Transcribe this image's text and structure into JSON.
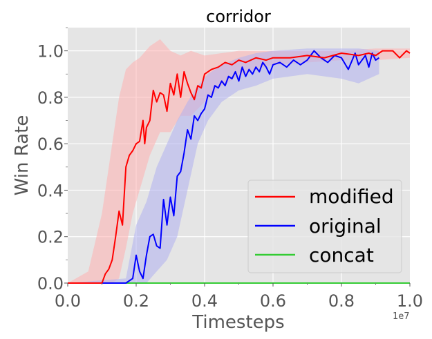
{
  "chart_data": {
    "type": "line",
    "title": "corridor",
    "xlabel": "Timesteps",
    "ylabel": "Win Rate",
    "x_offset_label": "1e7",
    "xlim": [
      0.0,
      1.0
    ],
    "ylim": [
      0.0,
      1.1
    ],
    "xticks": [
      "0.0",
      "0.2",
      "0.4",
      "0.6",
      "0.8",
      "1.0"
    ],
    "yticks": [
      "0.0",
      "0.2",
      "0.4",
      "0.6",
      "0.8",
      "1.0"
    ],
    "grid": true,
    "legend_position": "lower-right",
    "series": [
      {
        "name": "modified",
        "color": "#ff0000",
        "band_color": "#ffb0b0",
        "x": [
          0.0,
          0.1,
          0.11,
          0.12,
          0.13,
          0.14,
          0.15,
          0.16,
          0.17,
          0.18,
          0.19,
          0.2,
          0.21,
          0.22,
          0.225,
          0.23,
          0.24,
          0.25,
          0.26,
          0.27,
          0.28,
          0.29,
          0.3,
          0.31,
          0.32,
          0.33,
          0.34,
          0.35,
          0.36,
          0.37,
          0.38,
          0.39,
          0.4,
          0.42,
          0.44,
          0.46,
          0.48,
          0.5,
          0.52,
          0.55,
          0.58,
          0.6,
          0.65,
          0.7,
          0.75,
          0.8,
          0.85,
          0.88,
          0.9,
          0.92,
          0.95,
          0.97,
          0.99,
          1.0
        ],
        "y": [
          0.0,
          0.0,
          0.04,
          0.06,
          0.1,
          0.2,
          0.31,
          0.25,
          0.5,
          0.55,
          0.57,
          0.6,
          0.61,
          0.7,
          0.6,
          0.67,
          0.7,
          0.83,
          0.78,
          0.82,
          0.81,
          0.74,
          0.86,
          0.81,
          0.9,
          0.8,
          0.91,
          0.86,
          0.82,
          0.79,
          0.85,
          0.84,
          0.9,
          0.92,
          0.93,
          0.95,
          0.94,
          0.96,
          0.95,
          0.97,
          0.96,
          0.97,
          0.97,
          0.98,
          0.97,
          0.99,
          0.98,
          0.99,
          0.98,
          1.0,
          1.0,
          0.97,
          1.0,
          0.99
        ],
        "band": [
          [
            0.0,
            0.0,
            0.0
          ],
          [
            0.06,
            0.0,
            0.05
          ],
          [
            0.1,
            0.0,
            0.3
          ],
          [
            0.13,
            0.0,
            0.6
          ],
          [
            0.15,
            0.02,
            0.8
          ],
          [
            0.17,
            0.15,
            0.92
          ],
          [
            0.19,
            0.3,
            0.95
          ],
          [
            0.21,
            0.4,
            0.97
          ],
          [
            0.24,
            0.55,
            1.02
          ],
          [
            0.27,
            0.65,
            1.05
          ],
          [
            0.3,
            0.65,
            1.0
          ],
          [
            0.33,
            0.72,
            0.98
          ],
          [
            0.36,
            0.72,
            1.0
          ],
          [
            0.4,
            0.78,
            0.98
          ],
          [
            0.45,
            0.85,
            0.99
          ],
          [
            0.5,
            0.89,
            1.0
          ],
          [
            0.55,
            0.92,
            1.0
          ],
          [
            0.6,
            0.94,
            1.0
          ],
          [
            0.7,
            0.95,
            1.0
          ],
          [
            0.8,
            0.96,
            1.0
          ],
          [
            0.9,
            0.96,
            1.01
          ],
          [
            1.0,
            0.97,
            1.01
          ]
        ]
      },
      {
        "name": "original",
        "color": "#0000ff",
        "band_color": "#b0b0f0",
        "x": [
          0.0,
          0.17,
          0.18,
          0.19,
          0.2,
          0.21,
          0.22,
          0.23,
          0.24,
          0.25,
          0.26,
          0.27,
          0.28,
          0.29,
          0.3,
          0.31,
          0.32,
          0.33,
          0.34,
          0.35,
          0.36,
          0.37,
          0.38,
          0.39,
          0.4,
          0.41,
          0.42,
          0.43,
          0.44,
          0.45,
          0.46,
          0.47,
          0.48,
          0.49,
          0.5,
          0.51,
          0.52,
          0.53,
          0.54,
          0.55,
          0.56,
          0.57,
          0.58,
          0.59,
          0.6,
          0.62,
          0.64,
          0.66,
          0.68,
          0.7,
          0.72,
          0.74,
          0.76,
          0.78,
          0.8,
          0.82,
          0.84,
          0.85,
          0.86,
          0.87,
          0.88,
          0.89,
          0.9,
          0.91
        ],
        "y": [
          0.0,
          0.0,
          0.01,
          0.02,
          0.12,
          0.05,
          0.02,
          0.12,
          0.2,
          0.21,
          0.16,
          0.15,
          0.36,
          0.25,
          0.37,
          0.29,
          0.46,
          0.48,
          0.56,
          0.66,
          0.62,
          0.72,
          0.7,
          0.73,
          0.75,
          0.81,
          0.8,
          0.85,
          0.84,
          0.87,
          0.85,
          0.89,
          0.88,
          0.91,
          0.87,
          0.93,
          0.89,
          0.92,
          0.9,
          0.93,
          0.91,
          0.95,
          0.93,
          0.9,
          0.94,
          0.95,
          0.93,
          0.96,
          0.94,
          0.96,
          1.0,
          0.97,
          0.95,
          0.98,
          0.97,
          0.92,
          0.99,
          0.94,
          0.96,
          0.98,
          0.93,
          0.99,
          0.96,
          0.97
        ],
        "band": [
          [
            0.0,
            0.0,
            0.0
          ],
          [
            0.17,
            0.0,
            0.02
          ],
          [
            0.2,
            0.0,
            0.25
          ],
          [
            0.23,
            0.0,
            0.35
          ],
          [
            0.26,
            0.05,
            0.5
          ],
          [
            0.29,
            0.1,
            0.6
          ],
          [
            0.32,
            0.2,
            0.7
          ],
          [
            0.35,
            0.4,
            0.78
          ],
          [
            0.38,
            0.6,
            0.85
          ],
          [
            0.41,
            0.7,
            0.9
          ],
          [
            0.45,
            0.78,
            0.94
          ],
          [
            0.5,
            0.83,
            0.97
          ],
          [
            0.55,
            0.85,
            0.99
          ],
          [
            0.6,
            0.88,
            1.0
          ],
          [
            0.7,
            0.9,
            1.01
          ],
          [
            0.8,
            0.88,
            1.01
          ],
          [
            0.85,
            0.86,
            1.01
          ],
          [
            0.91,
            0.9,
            1.0
          ]
        ]
      },
      {
        "name": "concat",
        "color": "#33cc33",
        "band_color": "#b0f0b0",
        "x": [
          0.0,
          0.2,
          0.4,
          0.6,
          0.8,
          1.0
        ],
        "y": [
          0.0,
          0.0,
          0.0,
          0.0,
          0.0,
          0.0
        ],
        "band": [
          [
            0.0,
            0.0,
            0.002
          ],
          [
            1.0,
            0.0,
            0.002
          ]
        ]
      }
    ]
  }
}
